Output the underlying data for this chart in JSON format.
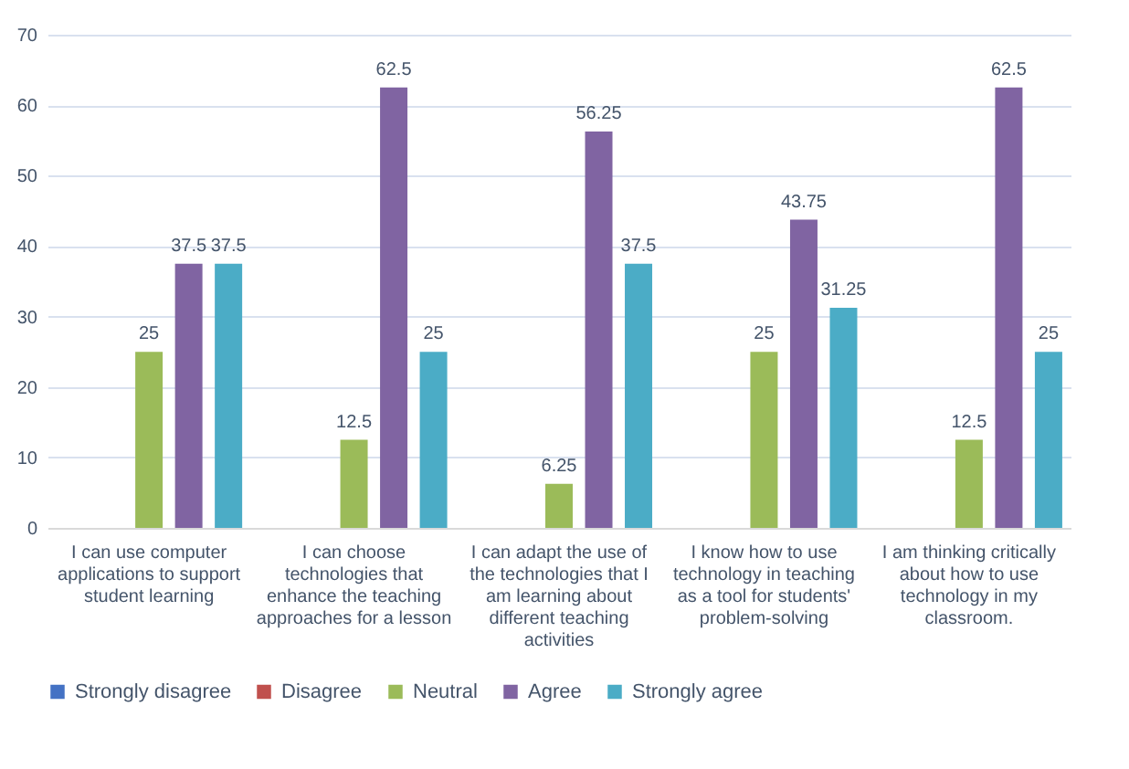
{
  "chart_data": {
    "type": "bar",
    "categories": [
      "I can use computer applications to support student learning",
      "I can choose technologies that enhance the teaching approaches for a lesson",
      "I can adapt the use of the technologies that I am learning about different teaching activities",
      "I know how to use technology in teaching as a tool for students' problem-solving",
      "I am thinking critically about how to use technology in my classroom."
    ],
    "series": [
      {
        "name": "Strongly disagree",
        "color": "#4472c4",
        "values": [
          0,
          0,
          0,
          0,
          0
        ],
        "value_labels": [
          null,
          null,
          null,
          null,
          null
        ]
      },
      {
        "name": "Disagree",
        "color": "#c0504d",
        "values": [
          0,
          0,
          0,
          0,
          0
        ],
        "value_labels": [
          null,
          null,
          null,
          null,
          null
        ]
      },
      {
        "name": "Neutral",
        "color": "#9bbb59",
        "values": [
          25,
          12.5,
          6.25,
          25,
          12.5
        ],
        "value_labels": [
          "25",
          "12.5",
          "6.25",
          "25",
          "12.5"
        ]
      },
      {
        "name": "Agree",
        "color": "#8064a2",
        "values": [
          37.5,
          62.5,
          56.25,
          43.75,
          62.5
        ],
        "value_labels": [
          "37.5",
          "62.5",
          "56.25",
          "43.75",
          "62.5"
        ]
      },
      {
        "name": "Strongly agree",
        "color": "#4bacc6",
        "values": [
          37.5,
          25,
          37.5,
          31.25,
          25
        ],
        "value_labels": [
          "37.5",
          "25",
          "37.5",
          "31.25",
          "25"
        ]
      }
    ],
    "ylim": [
      0,
      70
    ],
    "yticks": [
      0,
      10,
      20,
      30,
      40,
      50,
      60,
      70
    ],
    "grid": "y",
    "legend": "bottom"
  }
}
